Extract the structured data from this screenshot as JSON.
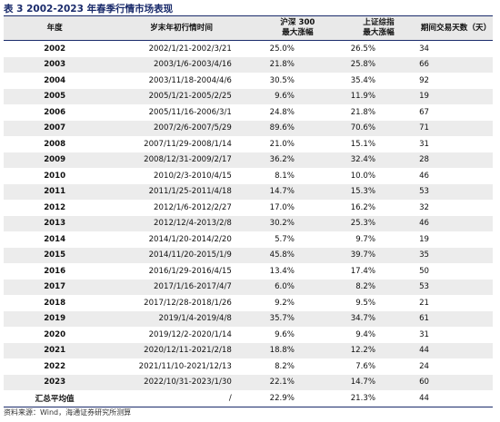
{
  "title": "表 3 2002-2023 年春季行情市场表现",
  "table": {
    "header": [
      "年度",
      "岁末年初行情时间",
      "沪深 300\n最大涨幅",
      "上证综指\n最大涨幅",
      "期间交易天数（天）"
    ],
    "rows": [
      [
        "2002",
        "2002/1/21-2002/3/21",
        "25.0%",
        "26.5%",
        "34"
      ],
      [
        "2003",
        "2003/1/6-2003/4/16",
        "21.8%",
        "25.8%",
        "66"
      ],
      [
        "2004",
        "2003/11/18-2004/4/6",
        "30.5%",
        "35.4%",
        "92"
      ],
      [
        "2005",
        "2005/1/21-2005/2/25",
        "9.6%",
        "11.9%",
        "19"
      ],
      [
        "2006",
        "2005/11/16-2006/3/1",
        "24.8%",
        "21.8%",
        "67"
      ],
      [
        "2007",
        "2007/2/6-2007/5/29",
        "89.6%",
        "70.6%",
        "71"
      ],
      [
        "2008",
        "2007/11/29-2008/1/14",
        "21.0%",
        "15.1%",
        "31"
      ],
      [
        "2009",
        "2008/12/31-2009/2/17",
        "36.2%",
        "32.4%",
        "28"
      ],
      [
        "2010",
        "2010/2/3-2010/4/15",
        "8.1%",
        "10.0%",
        "46"
      ],
      [
        "2011",
        "2011/1/25-2011/4/18",
        "14.7%",
        "15.3%",
        "53"
      ],
      [
        "2012",
        "2012/1/6-2012/2/27",
        "17.0%",
        "16.2%",
        "32"
      ],
      [
        "2013",
        "2012/12/4-2013/2/8",
        "30.2%",
        "25.3%",
        "46"
      ],
      [
        "2014",
        "2014/1/20-2014/2/20",
        "5.7%",
        "9.7%",
        "19"
      ],
      [
        "2015",
        "2014/11/20-2015/1/9",
        "45.8%",
        "39.7%",
        "35"
      ],
      [
        "2016",
        "2016/1/29-2016/4/15",
        "13.4%",
        "17.4%",
        "50"
      ],
      [
        "2017",
        "2017/1/16-2017/4/7",
        "6.0%",
        "8.2%",
        "53"
      ],
      [
        "2018",
        "2017/12/28-2018/1/26",
        "9.2%",
        "9.5%",
        "21"
      ],
      [
        "2019",
        "2019/1/4-2019/4/8",
        "35.7%",
        "34.7%",
        "61"
      ],
      [
        "2020",
        "2019/12/2-2020/1/14",
        "9.6%",
        "9.4%",
        "31"
      ],
      [
        "2021",
        "2020/12/11-2021/2/18",
        "18.8%",
        "12.2%",
        "44"
      ],
      [
        "2022",
        "2021/11/10-2021/12/13",
        "8.2%",
        "7.6%",
        "24"
      ],
      [
        "2023",
        "2022/10/31-2023/1/30",
        "22.1%",
        "14.7%",
        "60"
      ],
      [
        "汇总平均值",
        "/",
        "22.9%",
        "21.3%",
        "44"
      ]
    ]
  },
  "footer": "资料来源：Wind，海通证券研究所测算"
}
